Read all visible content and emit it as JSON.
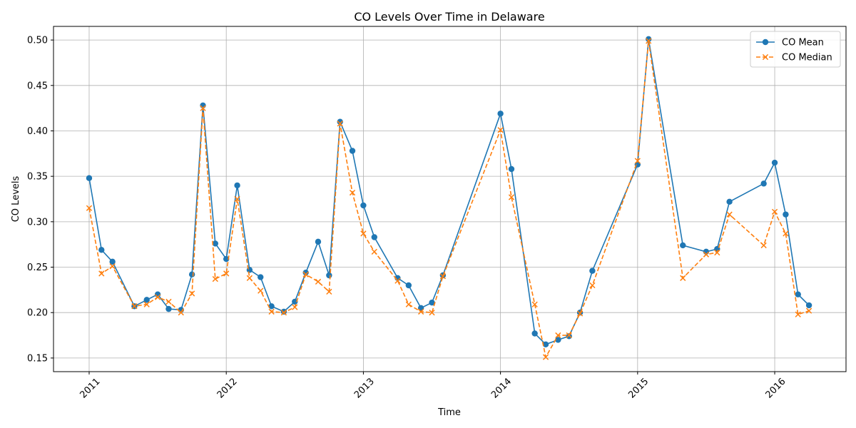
{
  "chart_data": {
    "type": "line",
    "title": "CO Levels Over Time in Delaware",
    "xlabel": "Time",
    "ylabel": "CO Levels",
    "ylim": [
      0.135,
      0.515
    ],
    "xlim": [
      2010.74,
      2016.52
    ],
    "yticks": [
      0.15,
      0.2,
      0.25,
      0.3,
      0.35,
      0.4,
      0.45,
      0.5
    ],
    "ytick_labels": [
      "0.15",
      "0.20",
      "0.25",
      "0.30",
      "0.35",
      "0.40",
      "0.45",
      "0.50"
    ],
    "xticks": [
      2011,
      2012,
      2013,
      2014,
      2015,
      2016
    ],
    "xtick_labels": [
      "2011",
      "2012",
      "2013",
      "2014",
      "2015",
      "2016"
    ],
    "grid": true,
    "legend_position": "top-right",
    "x": [
      2011.0,
      2011.09,
      2011.17,
      2011.33,
      2011.42,
      2011.5,
      2011.58,
      2011.67,
      2011.75,
      2011.83,
      2011.92,
      2012.0,
      2012.08,
      2012.17,
      2012.25,
      2012.33,
      2012.42,
      2012.5,
      2012.58,
      2012.67,
      2012.75,
      2012.83,
      2012.92,
      2013.0,
      2013.08,
      2013.25,
      2013.33,
      2013.42,
      2013.5,
      2013.58,
      2014.0,
      2014.08,
      2014.25,
      2014.33,
      2014.42,
      2014.5,
      2014.58,
      2014.67,
      2015.0,
      2015.08,
      2015.33,
      2015.5,
      2015.58,
      2015.67,
      2015.92,
      2016.0,
      2016.08,
      2016.17,
      2016.25
    ],
    "series": [
      {
        "name": "CO Mean",
        "color": "#1f77b4",
        "marker": "circle",
        "linestyle": "solid",
        "values": [
          0.348,
          0.269,
          0.256,
          0.207,
          0.214,
          0.22,
          0.204,
          0.203,
          0.242,
          0.428,
          0.276,
          0.259,
          0.34,
          0.247,
          0.239,
          0.207,
          0.201,
          0.212,
          0.244,
          0.278,
          0.241,
          0.41,
          0.378,
          0.318,
          0.283,
          0.238,
          0.23,
          0.205,
          0.211,
          0.241,
          0.419,
          0.358,
          0.177,
          0.165,
          0.17,
          0.174,
          0.2,
          0.246,
          0.363,
          0.501,
          0.274,
          0.267,
          0.27,
          0.322,
          0.342,
          0.365,
          0.308,
          0.22,
          0.208
        ]
      },
      {
        "name": "CO Median",
        "color": "#ff7f0e",
        "marker": "x",
        "linestyle": "dashed",
        "values": [
          0.315,
          0.243,
          0.251,
          0.207,
          0.209,
          0.217,
          0.212,
          0.2,
          0.221,
          0.425,
          0.237,
          0.243,
          0.325,
          0.238,
          0.224,
          0.201,
          0.2,
          0.206,
          0.242,
          0.234,
          0.223,
          0.408,
          0.332,
          0.287,
          0.267,
          0.235,
          0.209,
          0.201,
          0.2,
          0.24,
          0.401,
          0.327,
          0.209,
          0.151,
          0.175,
          0.175,
          0.199,
          0.23,
          0.367,
          0.499,
          0.238,
          0.264,
          0.266,
          0.308,
          0.274,
          0.311,
          0.287,
          0.198,
          0.202
        ]
      }
    ]
  }
}
